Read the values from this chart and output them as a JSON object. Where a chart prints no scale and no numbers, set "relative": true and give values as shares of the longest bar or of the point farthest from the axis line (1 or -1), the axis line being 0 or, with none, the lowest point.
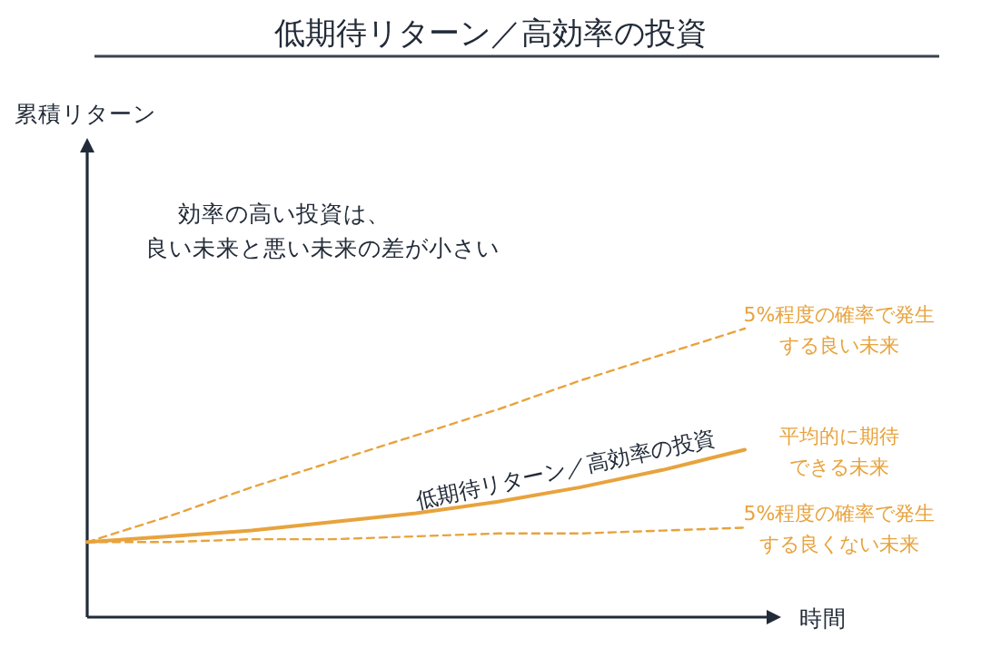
{
  "chart_data": {
    "type": "line",
    "title": "低期待リターン／高効率の投資",
    "xlabel": "時間",
    "relative": true,
    "categories": [
      null,
      null,
      null,
      null,
      null,
      null,
      null,
      null,
      null
    ],
    "series": [
      {
        "name": "5%程度の確率で発生する良い未来",
        "color": "#e8a33d",
        "line_style": "dashed",
        "values": [
          0.26,
          0.35,
          0.45,
          0.54,
          0.63,
          0.72,
          0.82,
          0.91,
          1.0
        ]
      },
      {
        "name": "平均的に期待できる未来",
        "color": "#e8a33d",
        "line_style": "solid",
        "values": [
          0.26,
          0.28,
          0.3,
          0.33,
          0.36,
          0.4,
          0.45,
          0.51,
          0.58
        ]
      },
      {
        "name": "5%程度の確率で発生する良くない未来",
        "color": "#e8a33d",
        "line_style": "dashed",
        "values": [
          0.26,
          0.26,
          0.27,
          0.27,
          0.28,
          0.29,
          0.29,
          0.3,
          0.31
        ]
      }
    ],
    "annotations": [
      "累積リターン",
      "効率の高い投資は、",
      "良い未来と悪い未来の差が小さい",
      {
        "text": "低期待リターン／高効率の投資",
        "y": 0.45
      }
    ],
    "grid": false,
    "marker": "none"
  }
}
